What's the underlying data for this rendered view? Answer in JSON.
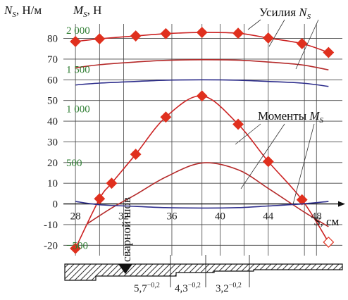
{
  "chart_data": {
    "type": "line",
    "left_axis": {
      "label": "N_S, Н/м",
      "ticks": [
        -20,
        -10,
        0,
        10,
        20,
        30,
        40,
        50,
        60,
        70,
        80
      ],
      "ylim": [
        -25,
        87
      ]
    },
    "right_axis": {
      "label": "M_S, Н",
      "ticks": [
        "−500",
        "500",
        "1 000",
        "1 500",
        "2 000"
      ],
      "color": "#2e7d32"
    },
    "x_axis": {
      "label": "S, см",
      "ticks": [
        28,
        32,
        36,
        40,
        44,
        48
      ],
      "extra_gridlines": [
        30,
        38.5,
        42,
        47
      ],
      "xlim": [
        27,
        50.5
      ]
    },
    "annotations": {
      "forces": "Усилия N_S",
      "moments": "Моменты M_S",
      "weld": "сварной шов",
      "thickness_1": "5,7",
      "thickness_2": "4,3",
      "thickness_3": "3,2",
      "tolerance": "−0,2"
    },
    "series": [
      {
        "group": "forces",
        "color": "#cc2222",
        "markers": true,
        "x": [
          28,
          30,
          33,
          35.5,
          38.5,
          41.5,
          44,
          46.8,
          49
        ],
        "y": [
          78.5,
          79.8,
          81.2,
          82.3,
          82.9,
          82.5,
          80.2,
          77.5,
          73.2
        ]
      },
      {
        "group": "forces",
        "color": "#b52a2a",
        "markers": false,
        "x": [
          28,
          30,
          33,
          35.5,
          38.5,
          41.5,
          44,
          46.8,
          49
        ],
        "y": [
          65.8,
          67.3,
          68.6,
          69.4,
          69.7,
          69.5,
          68.6,
          67.2,
          64.8
        ]
      },
      {
        "group": "forces",
        "color": "#2e2e8c",
        "markers": false,
        "x": [
          28,
          30,
          33,
          35.5,
          38.5,
          41.5,
          44,
          46.8,
          49
        ],
        "y": [
          57.5,
          58.4,
          59.2,
          59.8,
          60.0,
          59.8,
          59.2,
          58.4,
          56.8
        ]
      },
      {
        "group": "moments",
        "color": "#cc2222",
        "markers": true,
        "x": [
          28,
          30,
          31,
          33,
          35.5,
          38.5,
          41.5,
          44,
          46.8,
          49
        ],
        "y": [
          -21.5,
          2.5,
          10,
          24,
          42,
          52.2,
          38.5,
          20.5,
          2,
          -18.5
        ]
      },
      {
        "group": "moments",
        "color": "#b52a2a",
        "markers": false,
        "x": [
          29,
          31,
          33,
          35.5,
          38.5,
          41.5,
          44,
          47,
          49
        ],
        "y": [
          -9.5,
          -2,
          4.5,
          13,
          19.8,
          16.5,
          7.5,
          -4,
          -11
        ]
      },
      {
        "group": "moments",
        "color": "#2e2e8c",
        "markers": false,
        "x": [
          28,
          30,
          33,
          35.5,
          38.5,
          41.5,
          44,
          46.8,
          49
        ],
        "y": [
          1.2,
          -0.4,
          -1.2,
          -1.8,
          -2.0,
          -1.8,
          -1.0,
          0,
          1.2
        ]
      }
    ]
  }
}
